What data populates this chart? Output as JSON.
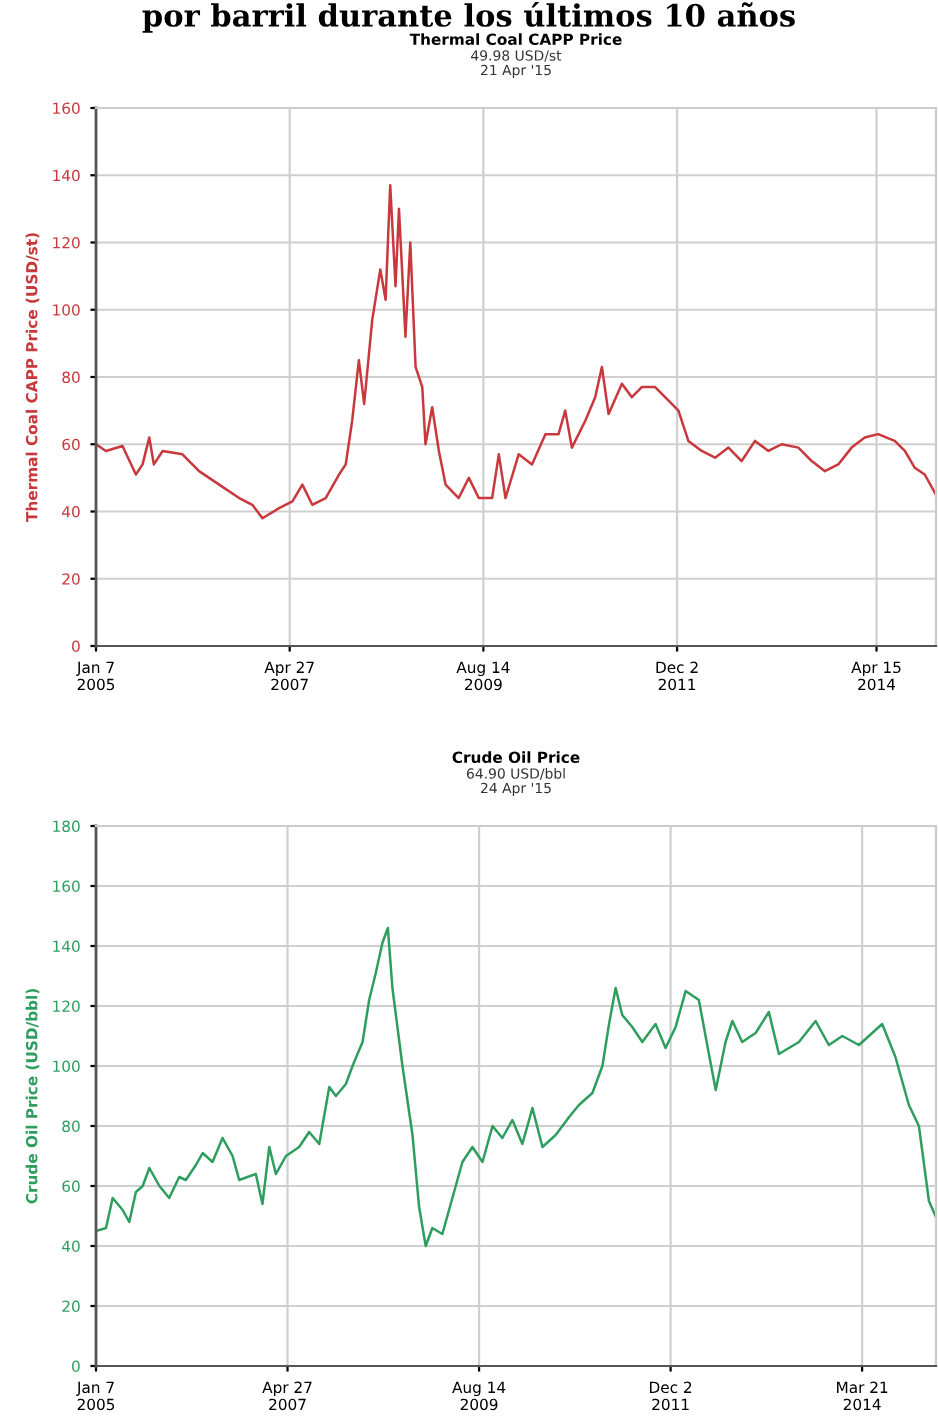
{
  "chart_data": [
    {
      "type": "line",
      "title": "Thermal Coal CAPP Price",
      "subtitle": "49.98 USD/st\n21 Apr '15",
      "ylabel": "Thermal Coal CAPP Price (USD/st)",
      "annotations": [
        "por barril durante los últimos 10 años"
      ],
      "x": [
        "2005-01-07",
        "2005-02-19",
        "2005-05-02",
        "2005-06-29",
        "2005-07-28",
        "2005-08-26",
        "2005-09-15",
        "2005-10-23",
        "2006-01-17",
        "2006-03-30",
        "2006-06-25",
        "2006-09-20",
        "2006-11-16",
        "2006-12-30",
        "2007-03-12",
        "2007-05-09",
        "2007-06-21",
        "2007-08-03",
        "2007-09-30",
        "2007-11-27",
        "2007-12-26",
        "2008-01-23",
        "2008-02-21",
        "2008-03-15",
        "2008-04-19",
        "2008-05-24",
        "2008-06-16",
        "2008-07-06",
        "2008-07-29",
        "2008-08-13",
        "2008-09-10",
        "2008-10-01",
        "2008-10-24",
        "2008-11-22",
        "2008-12-06",
        "2009-01-04",
        "2009-02-02",
        "2009-03-03",
        "2009-04-29",
        "2009-06-12",
        "2009-07-25",
        "2009-09-21",
        "2009-10-20",
        "2009-11-18",
        "2010-01-14",
        "2010-03-13",
        "2010-05-10",
        "2010-07-06",
        "2010-08-04",
        "2010-09-02",
        "2010-10-30",
        "2010-12-12",
        "2011-01-10",
        "2011-02-08",
        "2011-04-07",
        "2011-05-20",
        "2011-07-02",
        "2011-08-29",
        "2011-10-26",
        "2011-12-08",
        "2012-01-20",
        "2012-03-18",
        "2012-05-15",
        "2012-07-12",
        "2012-09-07",
        "2012-11-04",
        "2013-01-01",
        "2013-02-28",
        "2013-05-11",
        "2013-07-08",
        "2013-09-03",
        "2013-10-31",
        "2013-12-28",
        "2014-02-23",
        "2014-04-22",
        "2014-07-03",
        "2014-08-16",
        "2014-09-28",
        "2014-11-10",
        "2014-12-29"
      ],
      "series": [
        {
          "color": "#c8383c",
          "values": [
            60,
            58,
            59.5,
            51,
            54,
            62,
            54,
            58,
            57,
            52,
            48,
            44,
            42,
            38,
            41,
            43,
            48,
            42,
            44,
            51,
            54,
            67,
            85,
            72,
            97,
            112,
            103,
            137,
            107,
            130,
            92,
            120,
            83,
            77,
            60,
            71,
            58,
            48,
            44,
            50,
            44,
            44,
            57,
            44,
            57,
            54,
            63,
            63,
            70,
            59,
            67,
            74,
            83,
            69,
            78,
            74,
            77,
            77,
            73,
            70,
            61,
            58,
            56,
            59,
            55,
            61,
            58,
            60,
            59,
            55,
            52,
            54,
            59,
            62,
            63,
            61,
            58,
            53,
            51,
            45
          ]
        }
      ],
      "xlim": [
        "2005-01-07",
        "2014-12-29"
      ],
      "ylim": [
        0,
        160
      ],
      "yticks": [
        0,
        20,
        40,
        60,
        80,
        100,
        120,
        140,
        160
      ],
      "xticks": [
        {
          "value": "2005-01-07",
          "label": "Jan 7\n2005"
        },
        {
          "value": "2007-04-27",
          "label": "Apr 27\n2007"
        },
        {
          "value": "2009-08-14",
          "label": "Aug 14\n2009"
        },
        {
          "value": "2011-12-02",
          "label": "Dec 2\n2011"
        },
        {
          "value": "2014-04-15",
          "label": "Apr 15\n2014"
        }
      ],
      "grid": true
    },
    {
      "type": "line",
      "title": "Crude Oil Price",
      "subtitle": "64.90 USD/bbl\n24 Apr '15",
      "ylabel": "Crude Oil Price (USD/bbl)",
      "x": [
        "2005-01-07",
        "2005-02-20",
        "2005-03-21",
        "2005-05-04",
        "2005-06-02",
        "2005-07-01",
        "2005-07-31",
        "2005-08-29",
        "2005-10-12",
        "2005-11-24",
        "2006-01-07",
        "2006-02-05",
        "2006-03-21",
        "2006-04-20",
        "2006-06-02",
        "2006-07-16",
        "2006-08-29",
        "2006-09-27",
        "2006-12-09",
        "2007-01-07",
        "2007-02-06",
        "2007-03-07",
        "2007-04-20",
        "2007-06-17",
        "2007-07-31",
        "2007-09-13",
        "2007-10-27",
        "2007-11-25",
        "2008-01-08",
        "2008-02-06",
        "2008-03-21",
        "2008-04-19",
        "2008-05-18",
        "2008-06-16",
        "2008-07-10",
        "2008-07-30",
        "2008-09-12",
        "2008-10-26",
        "2008-11-24",
        "2008-12-23",
        "2009-01-21",
        "2009-03-06",
        "2009-04-19",
        "2009-06-02",
        "2009-07-16",
        "2009-08-29",
        "2009-10-12",
        "2009-11-24",
        "2010-01-07",
        "2010-02-20",
        "2010-04-05",
        "2010-05-19",
        "2010-07-16",
        "2010-09-13",
        "2010-10-26",
        "2010-12-24",
        "2011-02-06",
        "2011-03-07",
        "2011-04-05",
        "2011-05-04",
        "2011-06-17",
        "2011-07-31",
        "2011-09-27",
        "2011-11-10",
        "2011-12-24",
        "2012-02-06",
        "2012-04-04",
        "2012-05-18",
        "2012-06-17",
        "2012-07-30",
        "2012-08-29",
        "2012-10-11",
        "2012-12-09",
        "2013-02-05",
        "2013-03-21",
        "2013-05-04",
        "2013-06-17",
        "2013-08-29",
        "2013-10-26",
        "2013-12-24",
        "2014-03-07",
        "2014-06-17",
        "2014-08-14",
        "2014-10-12",
        "2014-11-25",
        "2015-01-08",
        "2015-02-06"
      ],
      "series": [
        {
          "color": "#2e9e5e",
          "values": [
            45,
            46,
            56,
            52,
            48,
            58,
            60,
            66,
            60,
            56,
            63,
            62,
            67,
            71,
            68,
            76,
            70,
            62,
            64,
            54,
            73,
            64,
            70,
            73,
            78,
            74,
            93,
            90,
            94,
            100,
            108,
            122,
            131,
            141,
            146,
            126,
            100,
            77,
            53,
            40,
            46,
            44,
            56,
            68,
            73,
            68,
            80,
            76,
            82,
            74,
            86,
            73,
            77,
            83,
            87,
            91,
            100,
            114,
            126,
            117,
            113,
            108,
            114,
            106,
            113,
            125,
            122,
            104,
            92,
            108,
            115,
            108,
            111,
            118,
            104,
            106,
            108,
            115,
            107,
            110,
            107,
            114,
            103,
            87,
            80,
            55,
            50
          ]
        }
      ],
      "xlim": [
        "2005-01-07",
        "2015-02-08"
      ],
      "ylim": [
        0,
        180
      ],
      "yticks": [
        0,
        20,
        40,
        60,
        80,
        100,
        120,
        140,
        160,
        180
      ],
      "xticks": [
        {
          "value": "2005-01-07",
          "label": "Jan 7\n2005"
        },
        {
          "value": "2007-04-27",
          "label": "Apr 27\n2007"
        },
        {
          "value": "2009-08-14",
          "label": "Aug 14\n2009"
        },
        {
          "value": "2011-12-02",
          "label": "Dec 2\n2011"
        },
        {
          "value": "2014-03-21",
          "label": "Mar 21\n2014"
        }
      ],
      "grid": true
    }
  ]
}
